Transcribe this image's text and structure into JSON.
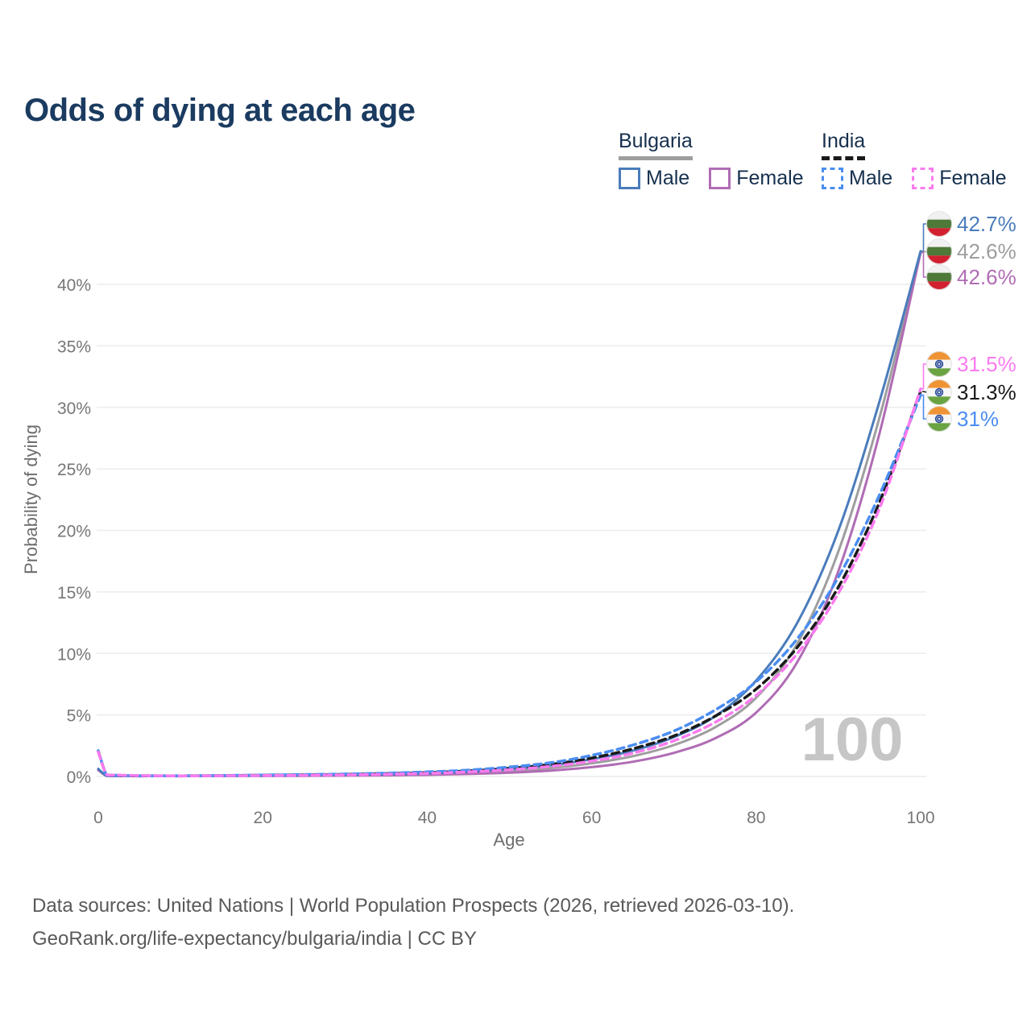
{
  "title": "Odds of dying at each age",
  "legend": {
    "groups": [
      {
        "label": "Bulgaria",
        "line_style": "solid",
        "underline_color": "#9e9e9e",
        "items": [
          {
            "label": "Male",
            "color": "#4a7cbb"
          },
          {
            "label": "Female",
            "color": "#b06cb4"
          }
        ]
      },
      {
        "label": "India",
        "line_style": "dashed",
        "underline_color": "#1a1a1a",
        "items": [
          {
            "label": "Male",
            "color": "#4b8df1"
          },
          {
            "label": "Female",
            "color": "#fb7bef"
          }
        ]
      }
    ]
  },
  "watermark": "100",
  "footer": {
    "line1": "Data sources: United Nations | World Population Prospects (2026, retrieved 2026-03-10).",
    "line2": "GeoRank.org/life-expectancy/bulgaria/india | CC BY"
  },
  "chart_data": {
    "type": "line",
    "title": "Odds of dying at each age",
    "xlabel": "Age",
    "ylabel": "Probability of dying",
    "xlim": [
      0,
      100
    ],
    "ylim": [
      0,
      44
    ],
    "grid": "horizontal",
    "legend_position": "top-right",
    "x_ticks": [
      "0",
      "20",
      "40",
      "60",
      "80",
      "100"
    ],
    "x_tick_values": [
      0,
      20,
      40,
      60,
      80,
      100
    ],
    "y_ticks": [
      "0%",
      "5%",
      "10%",
      "15%",
      "20%",
      "25%",
      "30%",
      "35%",
      "40%"
    ],
    "y_tick_values": [
      0,
      5,
      10,
      15,
      20,
      25,
      30,
      35,
      40
    ],
    "x": [
      0,
      1,
      2,
      5,
      10,
      15,
      20,
      25,
      30,
      35,
      40,
      45,
      50,
      55,
      60,
      65,
      70,
      75,
      80,
      85,
      90,
      95,
      100
    ],
    "series": [
      {
        "name": "Bulgaria Male",
        "country": "Bulgaria",
        "sex": "male",
        "color": "#4a7cbb",
        "dashed": false,
        "end_label": "42.7%",
        "end_value": 42.7,
        "values": [
          0.62,
          0.06,
          0.04,
          0.03,
          0.03,
          0.05,
          0.08,
          0.1,
          0.13,
          0.17,
          0.24,
          0.37,
          0.58,
          0.9,
          1.4,
          2.1,
          3.2,
          4.9,
          7.8,
          12.5,
          20.0,
          30.5,
          42.7
        ]
      },
      {
        "name": "Bulgaria Both sexes",
        "country": "Bulgaria",
        "sex": "both",
        "color": "#9e9e9e",
        "dashed": false,
        "end_label": "42.6%",
        "end_value": 42.6,
        "values": [
          0.57,
          0.05,
          0.04,
          0.03,
          0.03,
          0.04,
          0.06,
          0.08,
          0.1,
          0.13,
          0.18,
          0.28,
          0.44,
          0.68,
          1.07,
          1.65,
          2.55,
          4.0,
          6.4,
          10.8,
          18.3,
          29.2,
          42.6
        ]
      },
      {
        "name": "Bulgaria Female",
        "country": "Bulgaria",
        "sex": "female",
        "color": "#b06cb4",
        "dashed": false,
        "end_label": "42.6%",
        "end_value": 42.6,
        "values": [
          0.52,
          0.05,
          0.03,
          0.02,
          0.02,
          0.03,
          0.04,
          0.05,
          0.07,
          0.09,
          0.13,
          0.2,
          0.31,
          0.48,
          0.76,
          1.2,
          1.92,
          3.1,
          5.2,
          9.3,
          16.7,
          27.9,
          42.6
        ]
      },
      {
        "name": "India Female",
        "country": "India",
        "sex": "female",
        "color": "#fb7bef",
        "dashed": true,
        "end_label": "31.5%",
        "end_value": 31.5,
        "values": [
          2.0,
          0.16,
          0.11,
          0.07,
          0.05,
          0.06,
          0.08,
          0.1,
          0.13,
          0.18,
          0.25,
          0.37,
          0.55,
          0.82,
          1.25,
          1.9,
          2.9,
          4.4,
          6.6,
          10.0,
          14.9,
          21.8,
          31.5
        ]
      },
      {
        "name": "India Both sexes",
        "country": "India",
        "sex": "both",
        "color": "#1a1a1a",
        "dashed": true,
        "end_label": "31.3%",
        "end_value": 31.3,
        "values": [
          2.05,
          0.15,
          0.1,
          0.06,
          0.05,
          0.07,
          0.1,
          0.13,
          0.17,
          0.23,
          0.31,
          0.45,
          0.66,
          0.98,
          1.5,
          2.25,
          3.3,
          4.9,
          7.1,
          10.5,
          15.4,
          22.3,
          31.3
        ]
      },
      {
        "name": "India Male",
        "country": "India",
        "sex": "male",
        "color": "#4b8df1",
        "dashed": true,
        "end_label": "31%",
        "end_value": 31.0,
        "values": [
          2.1,
          0.14,
          0.1,
          0.06,
          0.06,
          0.08,
          0.12,
          0.16,
          0.2,
          0.27,
          0.37,
          0.52,
          0.77,
          1.12,
          1.72,
          2.55,
          3.7,
          5.4,
          7.7,
          11.2,
          16.2,
          22.9,
          31.0
        ]
      }
    ]
  }
}
